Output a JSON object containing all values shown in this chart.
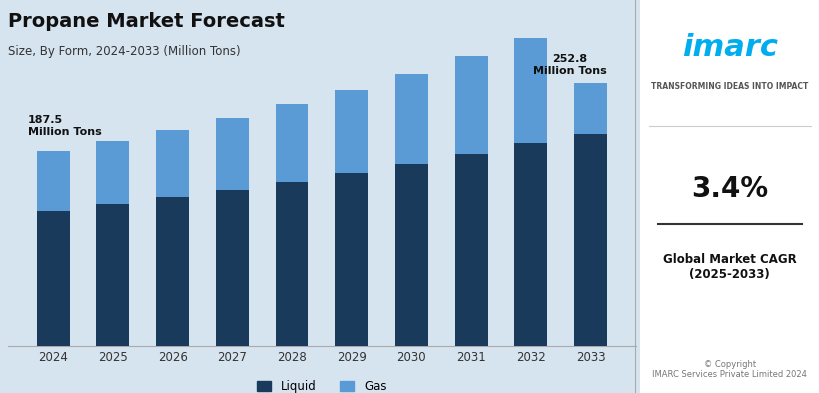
{
  "title": "Propane Market Forecast",
  "subtitle": "Size, By Form, 2024-2033 (Million Tons)",
  "years": [
    2024,
    2025,
    2026,
    2027,
    2028,
    2029,
    2030,
    2031,
    2032,
    2033
  ],
  "liquid_vals": [
    130.0,
    136.5,
    143.0,
    150.0,
    158.0,
    166.5,
    175.0,
    185.0,
    195.0,
    204.0
  ],
  "gas_vals": [
    57.5,
    61.0,
    65.0,
    69.5,
    74.5,
    80.0,
    86.5,
    93.5,
    101.5,
    48.8
  ],
  "total_first": "187.5",
  "total_last": "252.8",
  "color_liquid": "#1a3a5c",
  "color_gas": "#5b9bd5",
  "background_color": "#d6e4f0",
  "legend_liquid": "Liquid",
  "legend_gas": "Gas",
  "cagr_text": "3.4%",
  "cagr_label": "Global Market CAGR\n(2025-2033)",
  "copyright": "© Copyright\nIMARC Services Private Limited 2024",
  "imarc_tagline": "TRANSFORMING IDEAS INTO IMPACT"
}
